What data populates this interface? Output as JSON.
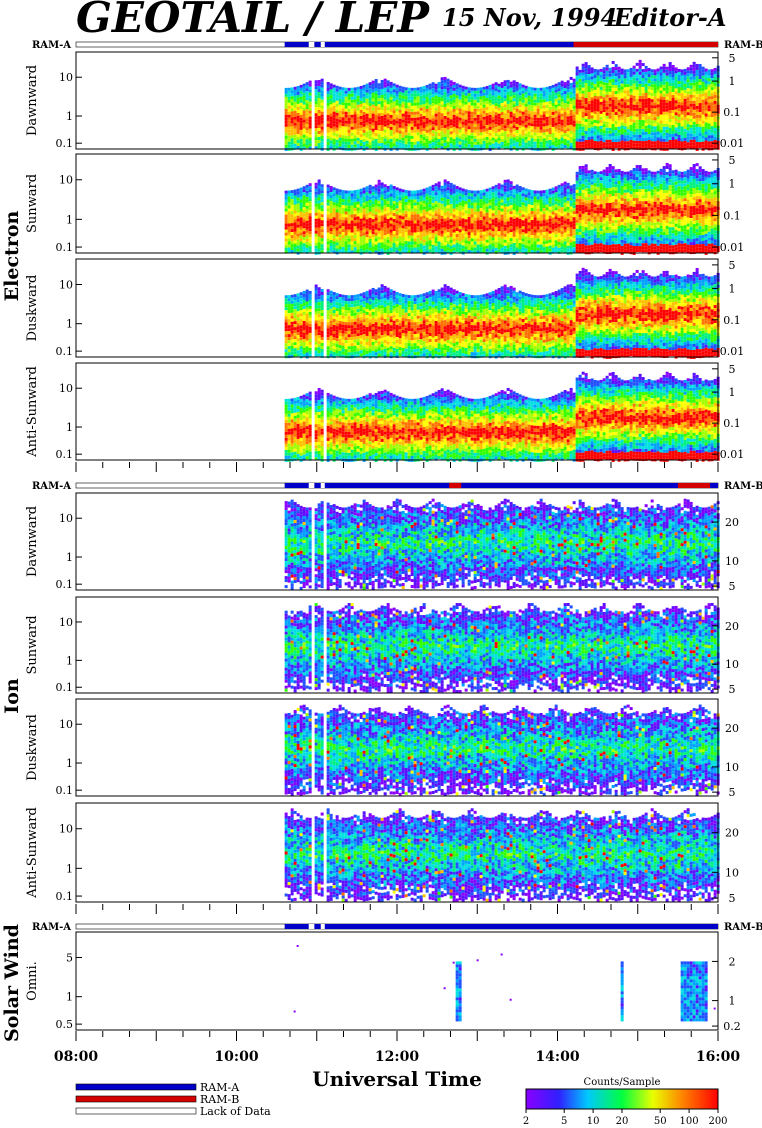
{
  "header": {
    "title": "GEOTAIL / LEP",
    "date": "15 Nov, 1994",
    "editor": "Editor-A"
  },
  "groups": {
    "electron": "Electron",
    "ion": "Ion",
    "solar_wind": "Solar Wind"
  },
  "ram": {
    "a": "RAM-A",
    "b": "RAM-B"
  },
  "colors": {
    "ram_a": "#0000c8",
    "ram_b": "#d40000",
    "lack": "#ffffff"
  },
  "chart_data": {
    "type": "heatmap",
    "xlabel": "Universal Time",
    "x_ticks": [
      "08:00",
      "10:00",
      "12:00",
      "14:00",
      "16:00"
    ],
    "x_range_hours": [
      8,
      16
    ],
    "data_start_hour": 10.6,
    "data_gaps_hours": [
      [
        10.9,
        10.97
      ],
      [
        11.05,
        11.1
      ]
    ],
    "ram_b_interval_hours": {
      "electron": [
        14.2,
        16.0
      ],
      "ion": [
        [
          12.65,
          12.8
        ],
        [
          15.5,
          15.9
        ]
      ]
    },
    "panels": [
      {
        "id": "e-dawn",
        "group": "electron",
        "label": "Dawnward",
        "left_ticks": [
          "10",
          "1",
          "0.1"
        ],
        "right_ticks": [
          "5",
          "1",
          "0.1",
          "0.01"
        ]
      },
      {
        "id": "e-sun",
        "group": "electron",
        "label": "Sunward",
        "left_ticks": [
          "10",
          "1",
          "0.1"
        ],
        "right_ticks": [
          "5",
          "1",
          "0.1",
          "0.01"
        ]
      },
      {
        "id": "e-dusk",
        "group": "electron",
        "label": "Duskward",
        "left_ticks": [
          "10",
          "1",
          "0.1"
        ],
        "right_ticks": [
          "5",
          "1",
          "0.1",
          "0.01"
        ]
      },
      {
        "id": "e-anti",
        "group": "electron",
        "label": "Anti-Sunward",
        "left_ticks": [
          "10",
          "1",
          "0.1"
        ],
        "right_ticks": [
          "5",
          "1",
          "0.1",
          "0.01"
        ]
      },
      {
        "id": "i-dawn",
        "group": "ion",
        "label": "Dawnward",
        "left_ticks": [
          "10",
          "1",
          "0.1"
        ],
        "right_ticks": [
          "20",
          "10",
          "5"
        ]
      },
      {
        "id": "i-sun",
        "group": "ion",
        "label": "Sunward",
        "left_ticks": [
          "10",
          "1",
          "0.1"
        ],
        "right_ticks": [
          "20",
          "10",
          "5"
        ]
      },
      {
        "id": "i-dusk",
        "group": "ion",
        "label": "Duskward",
        "left_ticks": [
          "10",
          "1",
          "0.1"
        ],
        "right_ticks": [
          "20",
          "10",
          "5"
        ]
      },
      {
        "id": "i-anti",
        "group": "ion",
        "label": "Anti-Sunward",
        "left_ticks": [
          "10",
          "1",
          "0.1"
        ],
        "right_ticks": [
          "20",
          "10",
          "5"
        ]
      },
      {
        "id": "sw-omni",
        "group": "solar_wind",
        "label": "Omni.",
        "left_ticks": [
          "5",
          "1",
          "0.5"
        ],
        "right_ticks": [
          "2",
          "1",
          "0.2"
        ]
      }
    ],
    "colorbar": {
      "title": "Counts/Sample",
      "ticks": [
        "2",
        "5",
        "10",
        "20",
        "50",
        "100",
        "200"
      ],
      "scale": "log"
    }
  },
  "legend": [
    {
      "label": "RAM-A",
      "color": "#0000c8"
    },
    {
      "label": "RAM-B",
      "color": "#d40000"
    },
    {
      "label": "Lack of Data",
      "color": "#ffffff"
    }
  ]
}
